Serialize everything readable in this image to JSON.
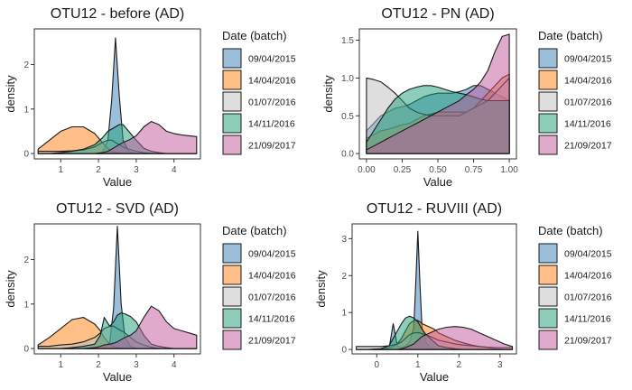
{
  "legend": {
    "title": "Date (batch)",
    "batches": [
      "09/04/2015",
      "14/04/2016",
      "01/07/2016",
      "14/11/2016",
      "21/09/2017"
    ],
    "colors": [
      "#377eb8",
      "#ff7f0e",
      "#bdbdbd",
      "#1b9e77",
      "#c2569b"
    ]
  },
  "chart_data": [
    {
      "type": "area",
      "title": "OTU12 - before (AD)",
      "xlabel": "Value",
      "ylabel": "density",
      "xlim": [
        0.3,
        4.7
      ],
      "ylim": [
        -0.12,
        2.8
      ],
      "xticks": [
        1,
        2,
        3,
        4
      ],
      "yticks": [
        0,
        1,
        2
      ],
      "xtick_labels": [
        "1",
        "2",
        "3",
        "4"
      ],
      "ytick_labels": [
        "0",
        "1",
        "2"
      ],
      "x": [
        0.4,
        0.7,
        1.0,
        1.3,
        1.6,
        1.9,
        2.1,
        2.25,
        2.35,
        2.45,
        2.55,
        2.65,
        2.8,
        3.0,
        3.2,
        3.4,
        3.6,
        3.8,
        4.0,
        4.2,
        4.4,
        4.6
      ],
      "series": [
        {
          "name": "09/04/2015",
          "values": [
            0,
            0,
            0,
            0,
            0,
            0,
            0.02,
            0.3,
            1.2,
            2.6,
            1.3,
            0.3,
            0.05,
            0,
            0,
            0,
            0,
            0,
            0,
            0,
            0,
            0
          ]
        },
        {
          "name": "14/04/2016",
          "values": [
            0.1,
            0.3,
            0.5,
            0.6,
            0.6,
            0.45,
            0.25,
            0.12,
            0.05,
            0.02,
            0.01,
            0,
            0,
            0,
            0,
            0,
            0,
            0,
            0,
            0,
            0,
            0
          ]
        },
        {
          "name": "01/07/2016",
          "values": [
            0.05,
            0.05,
            0.05,
            0.06,
            0.08,
            0.15,
            0.25,
            0.3,
            0.3,
            0.25,
            0.2,
            0.15,
            0.1,
            0.05,
            0.02,
            0,
            0,
            0,
            0,
            0,
            0,
            0
          ]
        },
        {
          "name": "14/11/2016",
          "values": [
            0,
            0,
            0.02,
            0.05,
            0.1,
            0.2,
            0.35,
            0.5,
            0.55,
            0.6,
            0.65,
            0.65,
            0.5,
            0.3,
            0.12,
            0.05,
            0.02,
            0,
            0,
            0,
            0,
            0
          ]
        },
        {
          "name": "21/09/2017",
          "values": [
            0,
            0,
            0,
            0,
            0,
            0,
            0.02,
            0.05,
            0.1,
            0.15,
            0.2,
            0.25,
            0.3,
            0.4,
            0.6,
            0.72,
            0.65,
            0.5,
            0.45,
            0.42,
            0.4,
            0.38
          ]
        }
      ]
    },
    {
      "type": "area",
      "title": "OTU12 - PN (AD)",
      "xlabel": "Value",
      "ylabel": "density",
      "xlim": [
        -0.05,
        1.05
      ],
      "ylim": [
        -0.07,
        1.65
      ],
      "xticks": [
        0,
        0.25,
        0.5,
        0.75,
        1
      ],
      "yticks": [
        0,
        0.5,
        1,
        1.5
      ],
      "xtick_labels": [
        "0.00",
        "0.25",
        "0.50",
        "0.75",
        "1.00"
      ],
      "ytick_labels": [
        "0.0",
        "0.5",
        "1.0",
        "1.5"
      ],
      "x": [
        0,
        0.05,
        0.1,
        0.15,
        0.2,
        0.25,
        0.3,
        0.35,
        0.4,
        0.45,
        0.5,
        0.55,
        0.6,
        0.65,
        0.7,
        0.75,
        0.8,
        0.85,
        0.9,
        0.95,
        1.0
      ],
      "series": [
        {
          "name": "09/04/2015",
          "values": [
            0.3,
            0.4,
            0.5,
            0.55,
            0.6,
            0.62,
            0.65,
            0.7,
            0.75,
            0.78,
            0.8,
            0.8,
            0.8,
            0.82,
            0.85,
            0.9,
            0.9,
            0.85,
            0.8,
            0.75,
            0.7
          ]
        },
        {
          "name": "14/04/2016",
          "values": [
            0.2,
            0.25,
            0.3,
            0.32,
            0.35,
            0.38,
            0.4,
            0.45,
            0.5,
            0.52,
            0.55,
            0.55,
            0.55,
            0.55,
            0.55,
            0.6,
            0.7,
            0.8,
            0.9,
            1.0,
            1.05
          ]
        },
        {
          "name": "01/07/2016",
          "values": [
            1.0,
            0.98,
            0.95,
            0.88,
            0.8,
            0.7,
            0.6,
            0.55,
            0.52,
            0.5,
            0.5,
            0.5,
            0.5,
            0.5,
            0.55,
            0.6,
            0.65,
            0.7,
            0.8,
            0.9,
            1.0
          ]
        },
        {
          "name": "14/11/2016",
          "values": [
            0.15,
            0.3,
            0.45,
            0.6,
            0.72,
            0.8,
            0.85,
            0.88,
            0.9,
            0.9,
            0.88,
            0.85,
            0.82,
            0.8,
            0.78,
            0.75,
            0.72,
            0.7,
            0.7,
            0.7,
            0.7
          ]
        },
        {
          "name": "21/09/2017",
          "values": [
            0.05,
            0.1,
            0.15,
            0.2,
            0.25,
            0.3,
            0.35,
            0.4,
            0.45,
            0.5,
            0.55,
            0.6,
            0.65,
            0.7,
            0.78,
            0.85,
            0.95,
            1.1,
            1.35,
            1.55,
            1.58
          ]
        }
      ]
    },
    {
      "type": "area",
      "title": "OTU12 - SVD (AD)",
      "xlabel": "Value",
      "ylabel": "density",
      "xlim": [
        0.3,
        4.7
      ],
      "ylim": [
        -0.12,
        2.8
      ],
      "xticks": [
        1,
        2,
        3,
        4
      ],
      "yticks": [
        0,
        1,
        2
      ],
      "xtick_labels": [
        "1",
        "2",
        "3",
        "4"
      ],
      "ytick_labels": [
        "0",
        "1",
        "2"
      ],
      "x": [
        0.4,
        0.7,
        1.0,
        1.3,
        1.6,
        1.9,
        2.05,
        2.15,
        2.3,
        2.4,
        2.5,
        2.6,
        2.7,
        2.85,
        3.0,
        3.2,
        3.4,
        3.6,
        3.8,
        4.0,
        4.2,
        4.4,
        4.6
      ],
      "series": [
        {
          "name": "09/04/2015",
          "values": [
            0,
            0,
            0,
            0,
            0,
            0,
            0,
            0.02,
            0.15,
            0.9,
            2.75,
            1.0,
            0.25,
            0.05,
            0,
            0,
            0,
            0,
            0,
            0,
            0,
            0,
            0
          ]
        },
        {
          "name": "14/04/2016",
          "values": [
            0.08,
            0.25,
            0.45,
            0.65,
            0.7,
            0.55,
            0.4,
            0.25,
            0.1,
            0.05,
            0.02,
            0.01,
            0,
            0,
            0,
            0,
            0,
            0,
            0,
            0,
            0,
            0,
            0
          ]
        },
        {
          "name": "01/07/2016",
          "values": [
            0.05,
            0.05,
            0.08,
            0.1,
            0.15,
            0.25,
            0.35,
            0.45,
            0.5,
            0.5,
            0.45,
            0.4,
            0.35,
            0.25,
            0.15,
            0.08,
            0.03,
            0,
            0,
            0,
            0,
            0,
            0
          ]
        },
        {
          "name": "14/11/2016",
          "values": [
            0,
            0,
            0,
            0.02,
            0.05,
            0.1,
            0.3,
            0.7,
            0.5,
            0.6,
            0.75,
            0.8,
            0.78,
            0.72,
            0.6,
            0.3,
            0.1,
            0.05,
            0.02,
            0,
            0,
            0,
            0
          ]
        },
        {
          "name": "21/09/2017",
          "values": [
            0,
            0,
            0,
            0,
            0,
            0.02,
            0.05,
            0.08,
            0.1,
            0.12,
            0.15,
            0.2,
            0.25,
            0.3,
            0.4,
            0.7,
            0.95,
            0.85,
            0.6,
            0.45,
            0.4,
            0.35,
            0.3
          ]
        }
      ]
    },
    {
      "type": "area",
      "title": "OTU12 - RUVIII (AD)",
      "xlabel": "Value",
      "ylabel": "density",
      "xlim": [
        -0.6,
        3.4
      ],
      "ylim": [
        -0.12,
        3.4
      ],
      "xticks": [
        0,
        1,
        2,
        3
      ],
      "yticks": [
        0,
        1,
        2,
        3
      ],
      "xtick_labels": [
        "0",
        "1",
        "2",
        "3"
      ],
      "ytick_labels": [
        "0",
        "1",
        "2",
        "3"
      ],
      "x": [
        -0.5,
        -0.2,
        0.1,
        0.3,
        0.4,
        0.5,
        0.6,
        0.7,
        0.8,
        0.9,
        0.95,
        1.0,
        1.05,
        1.1,
        1.2,
        1.3,
        1.4,
        1.5,
        1.7,
        1.9,
        2.1,
        2.3,
        2.5,
        2.7,
        2.9,
        3.1,
        3.3
      ],
      "series": [
        {
          "name": "09/04/2015",
          "values": [
            0,
            0,
            0,
            0.02,
            0.7,
            0.1,
            0.05,
            0.1,
            0.2,
            0.6,
            1.8,
            3.2,
            1.8,
            0.6,
            0.2,
            0.05,
            0.02,
            0,
            0,
            0,
            0,
            0,
            0,
            0,
            0,
            0,
            0
          ]
        },
        {
          "name": "14/04/2016",
          "values": [
            0,
            0,
            0.02,
            0.05,
            0.08,
            0.15,
            0.3,
            0.5,
            0.7,
            0.78,
            0.8,
            0.78,
            0.75,
            0.7,
            0.65,
            0.6,
            0.55,
            0.45,
            0.35,
            0.25,
            0.18,
            0.12,
            0.08,
            0.05,
            0.02,
            0,
            0
          ]
        },
        {
          "name": "01/07/2016",
          "values": [
            0.08,
            0.08,
            0.08,
            0.1,
            0.12,
            0.15,
            0.2,
            0.3,
            0.4,
            0.45,
            0.45,
            0.45,
            0.45,
            0.42,
            0.4,
            0.35,
            0.3,
            0.25,
            0.2,
            0.15,
            0.12,
            0.1,
            0.08,
            0.06,
            0.05,
            0.05,
            0.05
          ]
        },
        {
          "name": "14/11/2016",
          "values": [
            0,
            0,
            0.02,
            0.1,
            0.3,
            0.5,
            0.7,
            0.85,
            0.9,
            0.85,
            0.8,
            0.75,
            0.65,
            0.55,
            0.4,
            0.3,
            0.2,
            0.1,
            0.05,
            0.02,
            0,
            0,
            0,
            0,
            0,
            0,
            0
          ]
        },
        {
          "name": "21/09/2017",
          "values": [
            0,
            0,
            0,
            0,
            0,
            0,
            0.02,
            0.05,
            0.1,
            0.15,
            0.2,
            0.25,
            0.3,
            0.35,
            0.4,
            0.45,
            0.5,
            0.55,
            0.6,
            0.62,
            0.6,
            0.55,
            0.45,
            0.35,
            0.25,
            0.15,
            0.08
          ]
        }
      ]
    }
  ]
}
